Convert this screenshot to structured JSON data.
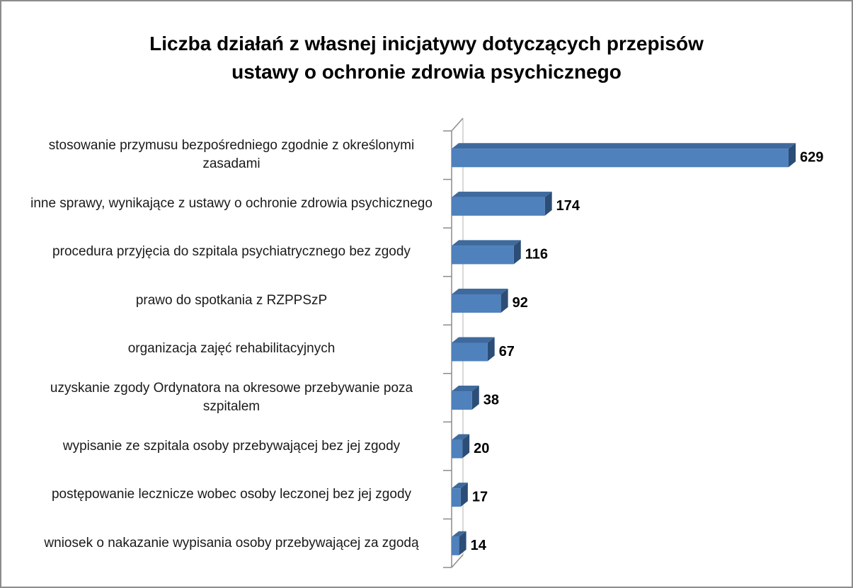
{
  "chart_data": {
    "type": "bar",
    "orientation": "horizontal",
    "title": "Liczba działań z własnej inicjatywy dotyczących przepisów ustawy o ochronie zdrowia psychicznego",
    "categories": [
      "stosowanie przymusu bezpośredniego zgodnie z określonymi zasadami",
      "inne sprawy, wynikające z ustawy o ochronie zdrowia psychicznego",
      "procedura przyjęcia do szpitala psychiatrycznego bez zgody",
      "prawo do spotkania z RZPPSzP",
      "organizacja zajęć rehabilitacyjnych",
      "uzyskanie zgody Ordynatora na okresowe przebywanie poza szpitalem",
      "wypisanie ze szpitala osoby przebywającej bez jej zgody",
      "postępowanie lecznicze wobec osoby leczonej bez jej zgody",
      "wniosek o nakazanie wypisania osoby przebywającej za zgodą"
    ],
    "values": [
      629,
      174,
      116,
      92,
      67,
      38,
      20,
      17,
      14
    ],
    "color": "#4f81bd"
  }
}
